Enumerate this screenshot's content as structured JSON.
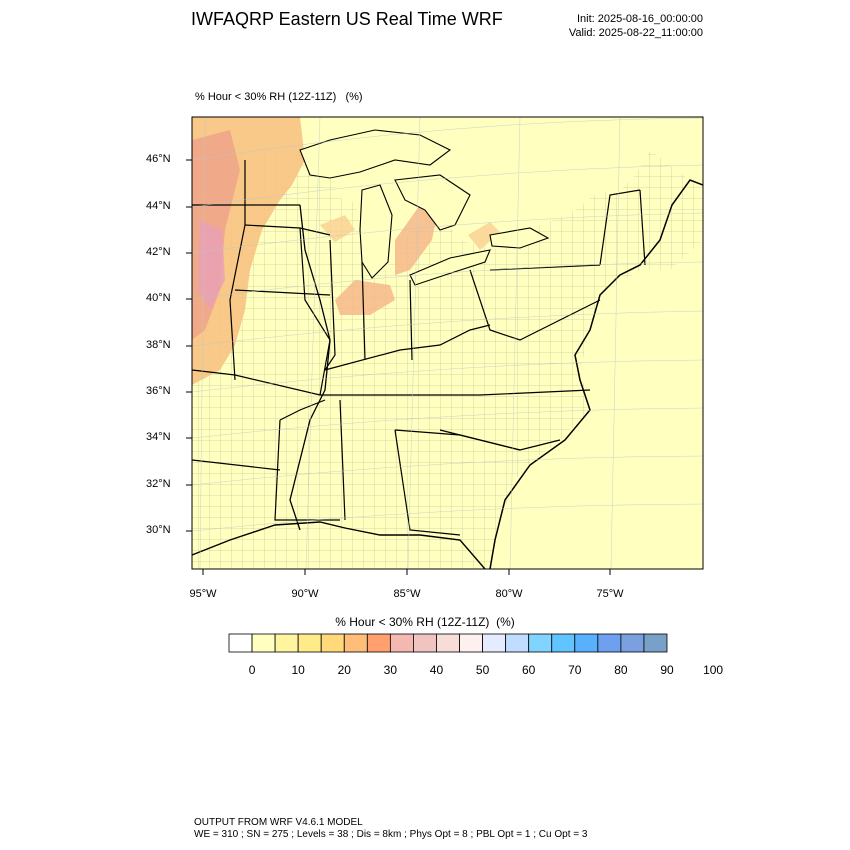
{
  "header": {
    "title": "IWFAQRP Eastern US Real Time WRF",
    "init": "Init: 2025-08-16_00:00:00",
    "valid": "Valid: 2025-08-22_11:00:00"
  },
  "map": {
    "field_label": "% Hour < 30% RH (12Z-11Z)   (%)",
    "projection": "lambert-conformal",
    "background_color": "#ffffc0",
    "lat_labels": [
      "46°N",
      "44°N",
      "42°N",
      "40°N",
      "38°N",
      "36°N",
      "34°N",
      "32°N",
      "30°N"
    ],
    "lon_labels": [
      "95°W",
      "90°W",
      "85°W",
      "80°W",
      "75°W"
    ],
    "features": [
      "state-boundaries",
      "county-boundaries",
      "great-lakes",
      "coastline",
      "dry-area-shading"
    ]
  },
  "colorbar": {
    "title": "% Hour < 30% RH (12Z-11Z)  (%)",
    "tick_labels": [
      "0",
      "10",
      "20",
      "30",
      "40",
      "50",
      "60",
      "70",
      "80",
      "90",
      "100"
    ],
    "colors": [
      "#ffffff",
      "#ffffc0",
      "#fff5a0",
      "#ffeb8a",
      "#ffd97a",
      "#ffbd7a",
      "#ffa06e",
      "#f5b8b0",
      "#f0c4c0",
      "#f8dcd8",
      "#fff0f0",
      "#e6ecff",
      "#c0dcff",
      "#80d4ff",
      "#60c4ff",
      "#58b0ff",
      "#6fa0f0",
      "#7aa0e0",
      "#78a0c8"
    ]
  },
  "footer": {
    "line1": "OUTPUT FROM WRF V4.6.1 MODEL",
    "line2": "WE = 310 ; SN = 275 ; Levels = 38 ; Dis = 8km ; Phys Opt = 8 ; PBL Opt = 1 ; Cu Opt = 3"
  }
}
